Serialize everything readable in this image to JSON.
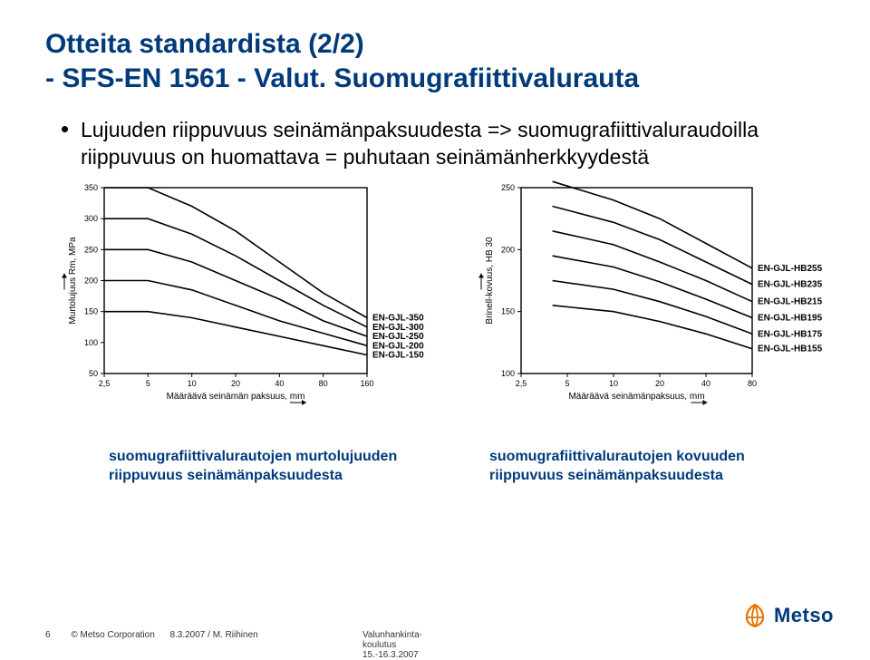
{
  "title": {
    "line1": "Otteita standardista (2/2)",
    "line2": "- SFS-EN 1561 - Valut. Suomugrafiittivalurauta"
  },
  "bullet": "Lujuuden riippuvuus seinämänpaksuudesta => suomugrafiittivaluraudoilla riippuvuus on huomattava = puhutaan seinämänherkkyydestä",
  "captions": {
    "left": "suomugrafiittivalurautojen murtolujuuden riippuvuus seinämänpaksuudesta",
    "right": "suomugrafiittivalurautojen kovuuden riippuvuus seinämänpaksuudesta"
  },
  "chart_left": {
    "type": "line",
    "x_label": "Määräävä seinämän paksuus, mm",
    "y_label": "Murtolujuus Rm, MPa",
    "x_scale": "log",
    "x_ticks": [
      2.5,
      5,
      10,
      20,
      40,
      80,
      160
    ],
    "y_ticks": [
      50,
      100,
      150,
      200,
      250,
      300,
      350
    ],
    "ylim": [
      50,
      350
    ],
    "series": [
      {
        "label": "EN-GJL-350",
        "points": [
          [
            2.5,
            350
          ],
          [
            5,
            350
          ],
          [
            10,
            320
          ],
          [
            20,
            280
          ],
          [
            40,
            230
          ],
          [
            80,
            180
          ],
          [
            160,
            140
          ]
        ]
      },
      {
        "label": "EN-GJL-300",
        "points": [
          [
            2.5,
            300
          ],
          [
            5,
            300
          ],
          [
            10,
            275
          ],
          [
            20,
            240
          ],
          [
            40,
            200
          ],
          [
            80,
            160
          ],
          [
            160,
            125
          ]
        ]
      },
      {
        "label": "EN-GJL-250",
        "points": [
          [
            2.5,
            250
          ],
          [
            5,
            250
          ],
          [
            10,
            230
          ],
          [
            20,
            200
          ],
          [
            40,
            170
          ],
          [
            80,
            135
          ],
          [
            160,
            110
          ]
        ]
      },
      {
        "label": "EN-GJL-200",
        "points": [
          [
            2.5,
            200
          ],
          [
            5,
            200
          ],
          [
            10,
            185
          ],
          [
            20,
            160
          ],
          [
            40,
            135
          ],
          [
            80,
            115
          ],
          [
            160,
            95
          ]
        ]
      },
      {
        "label": "EN-GJL-150",
        "points": [
          [
            2.5,
            150
          ],
          [
            5,
            150
          ],
          [
            10,
            140
          ],
          [
            20,
            125
          ],
          [
            40,
            110
          ],
          [
            80,
            95
          ],
          [
            160,
            80
          ]
        ]
      }
    ],
    "colors": {
      "axis": "#000000",
      "line": "#000000",
      "bg": "#ffffff"
    },
    "axis_fontsize": 9,
    "label_fontsize": 10
  },
  "chart_right": {
    "type": "line",
    "x_label": "Määräävä seinämänpaksuus, mm",
    "y_label": "Brinell-kovuus, HB 30",
    "x_scale": "log",
    "x_ticks": [
      2.5,
      5,
      10,
      20,
      40,
      80
    ],
    "y_ticks": [
      100,
      150,
      200,
      250
    ],
    "ylim": [
      100,
      250
    ],
    "series": [
      {
        "label": "EN-GJL-HB255",
        "points": [
          [
            4,
            255
          ],
          [
            10,
            240
          ],
          [
            20,
            225
          ],
          [
            40,
            205
          ],
          [
            80,
            185
          ]
        ]
      },
      {
        "label": "EN-GJL-HB235",
        "points": [
          [
            4,
            235
          ],
          [
            10,
            222
          ],
          [
            20,
            208
          ],
          [
            40,
            190
          ],
          [
            80,
            172
          ]
        ]
      },
      {
        "label": "EN-GJL-HB215",
        "points": [
          [
            4,
            215
          ],
          [
            10,
            204
          ],
          [
            20,
            190
          ],
          [
            40,
            175
          ],
          [
            80,
            158
          ]
        ]
      },
      {
        "label": "EN-GJL-HB195",
        "points": [
          [
            4,
            195
          ],
          [
            10,
            186
          ],
          [
            20,
            174
          ],
          [
            40,
            160
          ],
          [
            80,
            145
          ]
        ]
      },
      {
        "label": "EN-GJL-HB175",
        "points": [
          [
            4,
            175
          ],
          [
            10,
            168
          ],
          [
            20,
            158
          ],
          [
            40,
            146
          ],
          [
            80,
            132
          ]
        ]
      },
      {
        "label": "EN-GJL-HB155",
        "points": [
          [
            4,
            155
          ],
          [
            10,
            150
          ],
          [
            20,
            142
          ],
          [
            40,
            132
          ],
          [
            80,
            120
          ]
        ]
      }
    ],
    "colors": {
      "axis": "#000000",
      "line": "#000000",
      "bg": "#ffffff"
    },
    "axis_fontsize": 9,
    "label_fontsize": 10
  },
  "footer": {
    "page": "6",
    "copyright": "© Metso Corporation",
    "author": "8.3.2007 / M. Riihinen",
    "course": "Valunhankinta-koulutus 15.-16.3.2007"
  },
  "logo_text": "Metso"
}
